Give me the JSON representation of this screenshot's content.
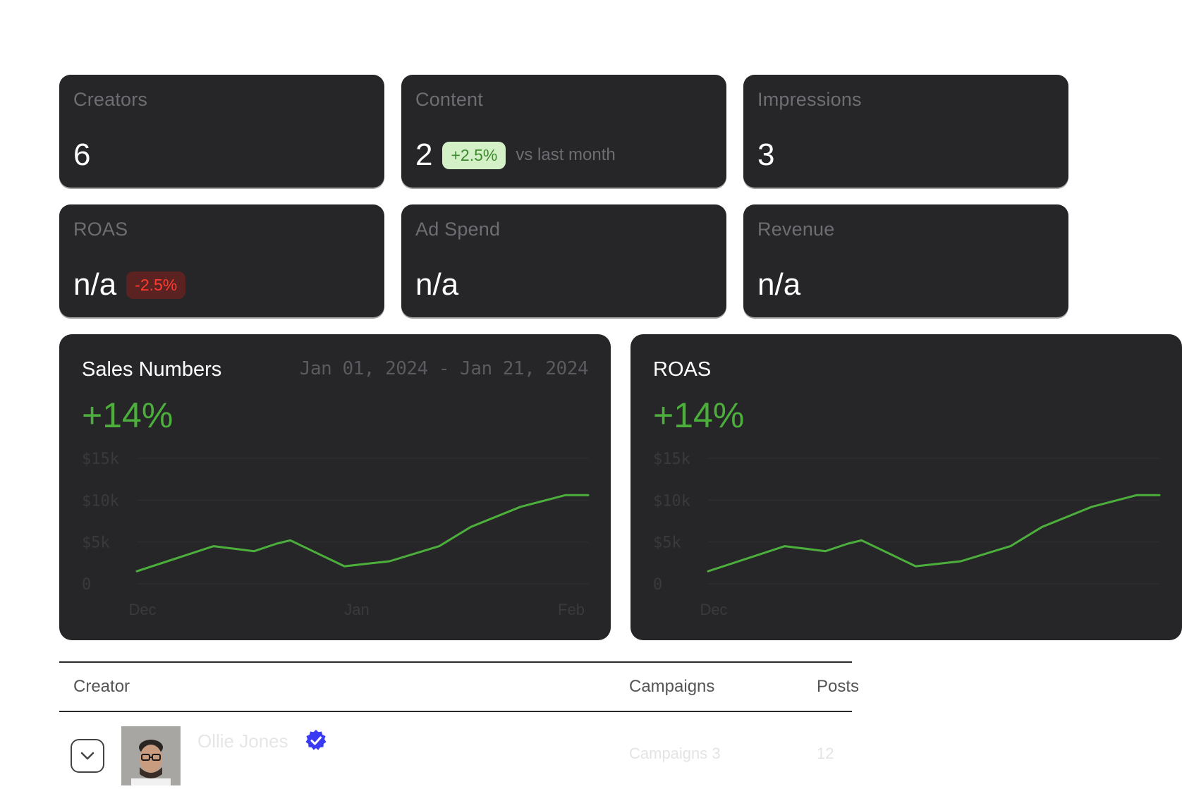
{
  "stats": [
    {
      "label": "Creators",
      "value": "6"
    },
    {
      "label": "Content",
      "value": "2",
      "badge": "+2.5%",
      "note": "vs last month"
    },
    {
      "label": "Impressions",
      "value": "3"
    },
    {
      "label": "ROAS",
      "value": "n/a",
      "badge": "-2.5%"
    },
    {
      "label": "Ad Spend",
      "value": "n/a"
    },
    {
      "label": "Revenue",
      "value": "n/a"
    }
  ],
  "charts": [
    {
      "title": "Sales Numbers",
      "date_range": "Jan 01, 2024 - Jan 21, 2024",
      "change": "+14%"
    },
    {
      "title": "ROAS",
      "change": "+14%"
    }
  ],
  "chart_data": [
    {
      "type": "line",
      "title": "Sales Numbers",
      "ylim": [
        0,
        15000
      ],
      "yticks": [
        "$15k",
        "$10k",
        "$5k",
        "0"
      ],
      "xticks": [
        "Dec",
        "Jan",
        "Feb"
      ],
      "x": [
        0,
        0.17,
        0.26,
        0.31,
        0.34,
        0.46,
        0.56,
        0.67,
        0.74,
        0.85,
        0.95,
        1.0
      ],
      "values": [
        1500,
        4500,
        3900,
        4800,
        5200,
        2100,
        2700,
        4500,
        6800,
        9200,
        10600,
        10600
      ],
      "color": "#4caf3c",
      "grid": true
    },
    {
      "type": "line",
      "title": "ROAS",
      "ylim": [
        0,
        15000
      ],
      "yticks": [
        "$15k",
        "$10k",
        "$5k",
        "0"
      ],
      "xticks": [
        "Dec"
      ],
      "x": [
        0,
        0.17,
        0.26,
        0.31,
        0.34,
        0.46,
        0.56,
        0.67,
        0.74,
        0.85,
        0.95,
        1.0
      ],
      "values": [
        1500,
        4500,
        3900,
        4800,
        5200,
        2100,
        2700,
        4500,
        6800,
        9200,
        10600,
        10600
      ],
      "color": "#4caf3c",
      "grid": true
    }
  ],
  "table": {
    "headers": [
      "Creator",
      "Campaigns",
      "Posts"
    ],
    "rows": [
      {
        "name": "Ollie Jones",
        "campaigns": "Campaigns 3",
        "posts": "12"
      }
    ]
  },
  "colors": {
    "accent": "#4caf3c",
    "card": "#262528",
    "muted": "#6e6d72",
    "verified": "#3a3af4"
  }
}
